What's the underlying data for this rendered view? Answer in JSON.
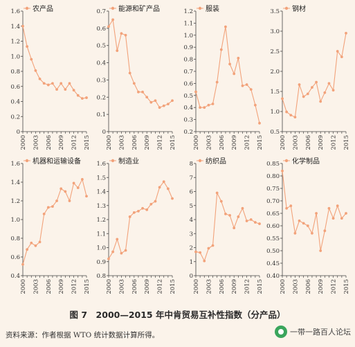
{
  "figure": {
    "caption": "图 7　2000—2015 年中肯贸易互补性指数（分产品）",
    "source": "资料来源：作者根据 WTO 统计数据计算所得。",
    "watermark": "一带一路百人论坛"
  },
  "colors": {
    "line": "#f2a27a",
    "marker": "#f2a27a",
    "axis": "#444444"
  },
  "chart_data": [
    {
      "type": "line",
      "legend": "农产品",
      "x": [
        2000,
        2001,
        2002,
        2003,
        2004,
        2005,
        2006,
        2007,
        2008,
        2009,
        2010,
        2011,
        2012,
        2013,
        2014,
        2015
      ],
      "values": [
        1.4,
        1.13,
        0.96,
        0.81,
        0.7,
        0.64,
        0.62,
        0.64,
        0.56,
        0.64,
        0.56,
        0.64,
        0.55,
        0.48,
        0.44,
        0.45
      ],
      "ylim": [
        0,
        1.6
      ],
      "yticks": [
        0,
        0.2,
        0.4,
        0.6,
        0.8,
        1.0,
        1.2,
        1.4,
        1.6
      ],
      "ytick_labels": [
        "0",
        "0.2",
        "0.4",
        "0.6",
        "0.8",
        "1.0",
        "1.2",
        "1.4",
        "1.6"
      ],
      "xtick_labels": [
        "2000",
        "2003",
        "2006",
        "2009",
        "2012",
        "2015"
      ]
    },
    {
      "type": "line",
      "legend": "能源和矿产品",
      "x": [
        2000,
        2001,
        2002,
        2003,
        2004,
        2005,
        2006,
        2007,
        2008,
        2009,
        2010,
        2011,
        2012,
        2013,
        2014,
        2015
      ],
      "values": [
        0.61,
        0.65,
        0.47,
        0.57,
        0.56,
        0.34,
        0.28,
        0.23,
        0.23,
        0.2,
        0.17,
        0.18,
        0.14,
        0.15,
        0.16,
        0.18
      ],
      "ylim": [
        0,
        0.7
      ],
      "yticks": [
        0,
        0.1,
        0.2,
        0.3,
        0.4,
        0.5,
        0.6,
        0.7
      ],
      "ytick_labels": [
        "0",
        "0.1",
        "0.2",
        "0.3",
        "0.4",
        "0.5",
        "0.6",
        "0.7"
      ],
      "xtick_labels": [
        "2000",
        "2003",
        "2006",
        "2009",
        "2012",
        "2015"
      ]
    },
    {
      "type": "line",
      "legend": "服装",
      "x": [
        2000,
        2001,
        2002,
        2003,
        2004,
        2005,
        2006,
        2007,
        2008,
        2009,
        2010,
        2011,
        2012,
        2013,
        2014,
        2015
      ],
      "values": [
        0.53,
        0.4,
        0.4,
        0.42,
        0.43,
        0.61,
        0.88,
        1.07,
        0.76,
        0.68,
        0.81,
        0.58,
        0.59,
        0.55,
        0.42,
        0.27
      ],
      "ylim": [
        0.2,
        1.2
      ],
      "yticks": [
        0.2,
        0.3,
        0.4,
        0.5,
        0.6,
        0.7,
        0.8,
        0.9,
        1.0,
        1.1,
        1.2
      ],
      "ytick_labels": [
        "0.2",
        "0.3",
        "0.4",
        "0.5",
        "0.6",
        "0.7",
        "0.8",
        "0.9",
        "1.0",
        "1.1",
        "1.2"
      ],
      "xtick_labels": [
        "2000",
        "2003",
        "2006",
        "2009",
        "2012",
        "2015"
      ]
    },
    {
      "type": "line",
      "legend": "钢材",
      "x": [
        2000,
        2001,
        2002,
        2003,
        2004,
        2005,
        2006,
        2007,
        2008,
        2009,
        2010,
        2011,
        2012,
        2013,
        2014,
        2015
      ],
      "values": [
        1.32,
        0.99,
        0.91,
        0.86,
        1.67,
        1.37,
        1.44,
        1.6,
        1.73,
        1.25,
        1.47,
        1.7,
        1.53,
        2.5,
        2.36,
        2.95
      ],
      "ylim": [
        0.5,
        3.5
      ],
      "yticks": [
        0.5,
        1.0,
        1.5,
        2.0,
        2.5,
        3.0,
        3.5
      ],
      "ytick_labels": [
        "0.5",
        "1.0",
        "1.5",
        "2.0",
        "2.5",
        "3.0",
        "3.5"
      ],
      "xtick_labels": [
        "2000",
        "2003",
        "2006",
        "2009",
        "2012",
        "2015"
      ]
    },
    {
      "type": "line",
      "legend": "机器和运输设备",
      "x": [
        2000,
        2001,
        2002,
        2003,
        2004,
        2005,
        2006,
        2007,
        2008,
        2009,
        2010,
        2011,
        2012,
        2013,
        2014,
        2015
      ],
      "values": [
        0.52,
        0.68,
        0.75,
        0.72,
        0.76,
        1.06,
        1.13,
        1.14,
        1.2,
        1.33,
        1.3,
        1.2,
        1.39,
        1.34,
        1.43,
        1.25
      ],
      "ylim": [
        0.4,
        1.6
      ],
      "yticks": [
        0.4,
        0.6,
        0.8,
        1.0,
        1.2,
        1.4,
        1.6
      ],
      "ytick_labels": [
        "0.4",
        "0.6",
        "0.8",
        "1.0",
        "1.2",
        "1.4",
        "1.6"
      ],
      "xtick_labels": [
        "2000",
        "2003",
        "2006",
        "2009",
        "2012",
        "2015"
      ]
    },
    {
      "type": "line",
      "legend": "制造业",
      "x": [
        2000,
        2001,
        2002,
        2003,
        2004,
        2005,
        2006,
        2007,
        2008,
        2009,
        2010,
        2011,
        2012,
        2013,
        2014,
        2015
      ],
      "values": [
        0.92,
        0.97,
        1.06,
        0.96,
        0.98,
        1.22,
        1.25,
        1.26,
        1.28,
        1.27,
        1.31,
        1.33,
        1.43,
        1.47,
        1.42,
        1.35
      ],
      "ylim": [
        0.8,
        1.6
      ],
      "yticks": [
        0.8,
        0.9,
        1.0,
        1.1,
        1.2,
        1.3,
        1.4,
        1.5,
        1.6
      ],
      "ytick_labels": [
        "0.8",
        "0.9",
        "1.0",
        "1.1",
        "1.2",
        "1.3",
        "1.4",
        "1.5",
        "1.6"
      ],
      "xtick_labels": [
        "2000",
        "2003",
        "2006",
        "2009",
        "2012",
        "2015"
      ]
    },
    {
      "type": "line",
      "legend": "纺织品",
      "x": [
        2000,
        2001,
        2002,
        2003,
        2004,
        2005,
        2006,
        2007,
        2008,
        2009,
        2010,
        2011,
        2012,
        2013,
        2014,
        2015
      ],
      "values": [
        1.7,
        1.65,
        1.05,
        1.95,
        2.15,
        5.9,
        5.3,
        4.4,
        4.3,
        3.4,
        4.2,
        4.8,
        3.9,
        4.0,
        3.8,
        3.7
      ],
      "ylim": [
        0,
        8
      ],
      "yticks": [
        0,
        1,
        2,
        3,
        4,
        5,
        6,
        7,
        8
      ],
      "ytick_labels": [
        "0",
        "1",
        "2",
        "3",
        "4",
        "5",
        "6",
        "7",
        "8"
      ],
      "xtick_labels": [
        "2000",
        "2003",
        "2006",
        "2009",
        "2012",
        "2015"
      ]
    },
    {
      "type": "line",
      "legend": "化学制品",
      "x": [
        2000,
        2001,
        2002,
        2003,
        2004,
        2005,
        2006,
        2007,
        2008,
        2009,
        2010,
        2011,
        2012,
        2013,
        2014,
        2015
      ],
      "values": [
        0.82,
        0.67,
        0.68,
        0.57,
        0.62,
        0.61,
        0.6,
        0.57,
        0.65,
        0.5,
        0.58,
        0.67,
        0.63,
        0.68,
        0.63,
        0.65
      ],
      "ylim": [
        0.4,
        0.85
      ],
      "yticks": [
        0.4,
        0.45,
        0.5,
        0.55,
        0.6,
        0.65,
        0.7,
        0.75,
        0.8,
        0.85
      ],
      "ytick_labels": [
        "0.40",
        "0.45",
        "0.50",
        "0.55",
        "0.60",
        "0.65",
        "0.70",
        "0.75",
        "0.80",
        "0.85"
      ],
      "xtick_labels": [
        "2000",
        "2003",
        "2006",
        "2009",
        "2012",
        "2015"
      ]
    }
  ]
}
